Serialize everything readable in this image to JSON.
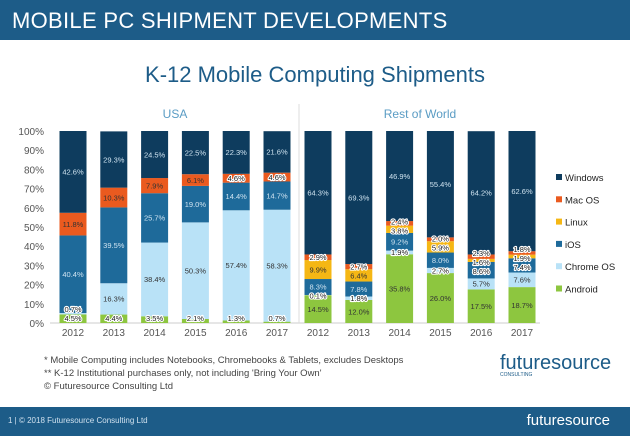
{
  "header": {
    "title": "MOBILE PC SHIPMENT DEVELOPMENTS"
  },
  "chart_data": {
    "type": "bar",
    "stacked": true,
    "title": "K-12 Mobile Computing Shipments",
    "ylim": [
      0,
      100
    ],
    "yticks": [
      "0%",
      "10%",
      "20%",
      "30%",
      "40%",
      "50%",
      "60%",
      "70%",
      "80%",
      "90%",
      "100%"
    ],
    "legend_position": "right",
    "series_order": [
      "Android",
      "Chrome OS",
      "iOS",
      "Linux",
      "Mac OS",
      "Windows"
    ],
    "legend": [
      "Windows",
      "Mac OS",
      "Linux",
      "iOS",
      "Chrome OS",
      "Android"
    ],
    "colors": {
      "Windows": "#0e3c5e",
      "Mac OS": "#ea5a1f",
      "Linux": "#f5b714",
      "iOS": "#1e6a9a",
      "Chrome OS": "#b9e2f7",
      "Android": "#8dc63f"
    },
    "panels": [
      {
        "name": "USA",
        "categories": [
          "2012",
          "2013",
          "2014",
          "2015",
          "2016",
          "2017"
        ],
        "series": {
          "Android": [
            4.5,
            4.4,
            3.5,
            2.1,
            1.3,
            0.7
          ],
          "Chrome OS": [
            0.7,
            16.3,
            38.4,
            50.3,
            57.4,
            58.3
          ],
          "iOS": [
            40.4,
            39.5,
            25.7,
            19.0,
            14.4,
            14.7
          ],
          "Linux": [
            0,
            0,
            0,
            0,
            0,
            0
          ],
          "Mac OS": [
            11.8,
            10.3,
            7.9,
            6.1,
            4.6,
            4.6
          ],
          "Windows": [
            42.6,
            29.3,
            24.5,
            22.5,
            22.3,
            21.6
          ]
        }
      },
      {
        "name": "Rest of World",
        "categories": [
          "2012",
          "2013",
          "2014",
          "2015",
          "2016",
          "2017"
        ],
        "series": {
          "Android": [
            14.5,
            12.0,
            35.8,
            26.0,
            17.5,
            18.7
          ],
          "Chrome OS": [
            0.1,
            1.8,
            1.9,
            2.7,
            5.7,
            7.6
          ],
          "iOS": [
            8.3,
            7.8,
            9.2,
            8.0,
            8.6,
            7.4
          ],
          "Linux": [
            9.9,
            6.4,
            3.8,
            5.9,
            1.6,
            1.9
          ],
          "Mac OS": [
            2.9,
            2.7,
            2.4,
            2.0,
            2.3,
            1.8
          ],
          "Windows": [
            64.3,
            69.3,
            46.9,
            55.4,
            64.2,
            62.6
          ]
        }
      }
    ]
  },
  "notes": [
    "* Mobile Computing includes Notebooks, Chromebooks & Tablets, excludes Desktops",
    "** K-12 Institutional purchases only, not including 'Bring Your Own'",
    "© Futuresource Consulting Ltd"
  ],
  "logo": {
    "name": "futuresource",
    "sub": "CONSULTING"
  },
  "footer": {
    "text": "1 | © 2018 Futuresource Consulting Ltd",
    "logo": "futuresource"
  }
}
